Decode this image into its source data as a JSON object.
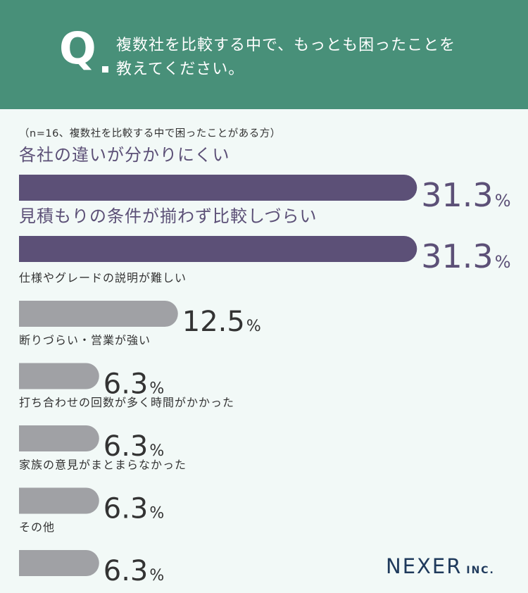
{
  "question": {
    "mark": "Q",
    "line1": "複数社を比較する中で、もっとも困ったことを",
    "line2": "教えてください。"
  },
  "note": "（n=16、複数社を比較する中で困ったことがある方）",
  "colors": {
    "header": "#489079",
    "background": "#f2f9f7",
    "highlight_bar": "#5c5077",
    "normal_bar": "#a0a1a5",
    "highlight_label": "#5c5077",
    "normal_label": "#333333"
  },
  "chart_data": {
    "type": "bar",
    "orientation": "horizontal",
    "unit": "%",
    "categories": [
      "各社の違いが分かりにくい",
      "見積もりの条件が揃わず比較しづらい",
      "仕様やグレードの説明が難しい",
      "断りづらい・営業が強い",
      "打ち合わせの回数が多く時間がかかった",
      "家族の意見がまとまらなかった",
      "その他"
    ],
    "values": [
      31.3,
      31.3,
      12.5,
      6.3,
      6.3,
      6.3,
      6.3
    ],
    "highlighted": [
      true,
      true,
      false,
      false,
      false,
      false,
      false
    ]
  },
  "brand": {
    "name": "NEXER",
    "suffix": "INC."
  }
}
